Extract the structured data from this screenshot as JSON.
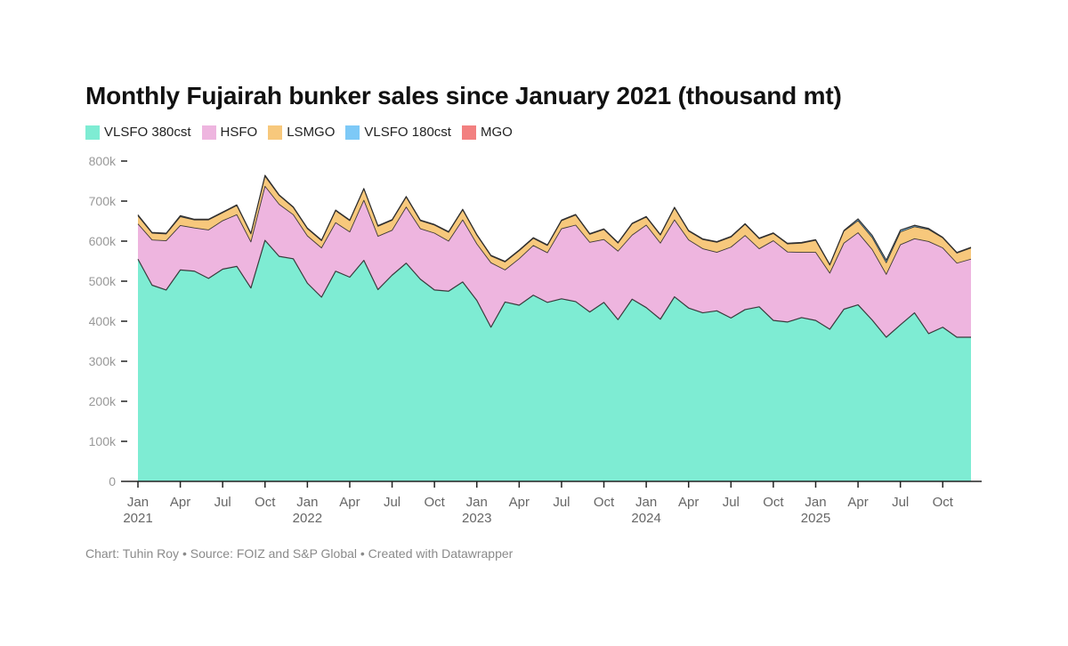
{
  "title": "Monthly Fujairah bunker sales since January 2021 (thousand mt)",
  "footer": "Chart: Tuhin Roy • Source: FOIZ and S&P Global • Created with Datawrapper",
  "colors": {
    "vlsfo380": "#7eecd3",
    "hsfo": "#eeb5df",
    "lsmgo": "#f7c87c",
    "vlsfo180": "#7dc9f7",
    "mgo": "#f28080",
    "outline": "#2a2a2a",
    "axis": "#222222",
    "tick_text": "#999999",
    "x_text": "#666666"
  },
  "chart_data": {
    "type": "area",
    "stacked": true,
    "title": "Monthly Fujairah bunker sales since January 2021 (thousand mt)",
    "ylim": [
      0,
      800000
    ],
    "y_ticks": [
      0,
      100000,
      200000,
      300000,
      400000,
      500000,
      600000,
      700000,
      800000
    ],
    "y_tick_labels": [
      "0",
      "100k",
      "200k",
      "300k",
      "400k",
      "500k",
      "600k",
      "700k",
      "800k"
    ],
    "x_ticks": [
      {
        "index": 0,
        "month": "Jan",
        "year": "2021"
      },
      {
        "index": 3,
        "month": "Apr",
        "year": ""
      },
      {
        "index": 6,
        "month": "Jul",
        "year": ""
      },
      {
        "index": 9,
        "month": "Oct",
        "year": ""
      },
      {
        "index": 12,
        "month": "Jan",
        "year": "2022"
      },
      {
        "index": 15,
        "month": "Apr",
        "year": ""
      },
      {
        "index": 18,
        "month": "Jul",
        "year": ""
      },
      {
        "index": 21,
        "month": "Oct",
        "year": ""
      },
      {
        "index": 24,
        "month": "Jan",
        "year": "2023"
      },
      {
        "index": 27,
        "month": "Apr",
        "year": ""
      },
      {
        "index": 30,
        "month": "Jul",
        "year": ""
      },
      {
        "index": 33,
        "month": "Oct",
        "year": ""
      },
      {
        "index": 36,
        "month": "Jan",
        "year": "2024"
      },
      {
        "index": 39,
        "month": "Apr",
        "year": ""
      },
      {
        "index": 42,
        "month": "Jul",
        "year": ""
      },
      {
        "index": 45,
        "month": "Oct",
        "year": ""
      },
      {
        "index": 48,
        "month": "Jan",
        "year": "2025"
      },
      {
        "index": 51,
        "month": "Apr",
        "year": ""
      },
      {
        "index": 54,
        "month": "Jul",
        "year": ""
      },
      {
        "index": 57,
        "month": "Oct",
        "year": ""
      }
    ],
    "period_start": "Jan 2021",
    "period_end": "Dec 2025",
    "series": [
      {
        "name": "VLSFO 380cst",
        "color": "#7eecd3",
        "values": [
          555,
          490,
          478,
          528,
          525,
          507,
          530,
          537,
          483,
          602,
          562,
          556,
          495,
          460,
          525,
          510,
          552,
          479,
          515,
          545,
          505,
          478,
          475,
          498,
          452,
          385,
          448,
          440,
          465,
          447,
          456,
          449,
          423,
          447,
          404,
          455,
          434,
          405,
          461,
          433,
          421,
          426,
          408,
          429,
          436,
          402,
          398,
          409,
          402,
          380,
          430,
          441,
          403,
          360,
          391,
          421,
          369,
          385,
          360,
          360
        ]
      },
      {
        "name": "HSFO",
        "color": "#eeb5df",
        "values": [
          88,
          113,
          123,
          111,
          108,
          121,
          121,
          129,
          115,
          135,
          130,
          110,
          118,
          123,
          121,
          113,
          150,
          133,
          112,
          140,
          126,
          142,
          125,
          155,
          141,
          161,
          80,
          116,
          124,
          124,
          175,
          191,
          174,
          157,
          171,
          160,
          206,
          190,
          192,
          170,
          160,
          146,
          177,
          185,
          145,
          199,
          175,
          163,
          170,
          140,
          165,
          180,
          176,
          157,
          200,
          185,
          230,
          198,
          185,
          195
        ]
      },
      {
        "name": "LSMGO",
        "color": "#f7c87c",
        "values": [
          20,
          17,
          17,
          22,
          20,
          25,
          20,
          23,
          20,
          25,
          22,
          18,
          18,
          18,
          30,
          28,
          28,
          25,
          25,
          25,
          20,
          20,
          22,
          25,
          22,
          17,
          20,
          20,
          18,
          18,
          20,
          25,
          20,
          25,
          20,
          28,
          20,
          20,
          30,
          22,
          23,
          25,
          25,
          28,
          25,
          18,
          20,
          23,
          30,
          20,
          30,
          30,
          30,
          29,
          32,
          30,
          30,
          25,
          25,
          28
        ]
      },
      {
        "name": "VLSFO 180cst",
        "color": "#7dc9f7",
        "values": [
          2,
          1,
          1,
          2,
          1,
          1,
          1,
          1,
          1,
          2,
          1,
          1,
          1,
          1,
          1,
          1,
          1,
          1,
          1,
          1,
          1,
          1,
          1,
          1,
          1,
          1,
          1,
          1,
          1,
          1,
          1,
          1,
          1,
          1,
          1,
          1,
          1,
          1,
          1,
          1,
          1,
          1,
          1,
          1,
          1,
          1,
          1,
          1,
          1,
          1,
          1,
          4,
          5,
          6,
          4,
          3,
          2,
          1,
          1,
          1
        ]
      },
      {
        "name": "MGO",
        "color": "#f28080",
        "values": [
          1,
          1,
          1,
          1,
          1,
          1,
          1,
          1,
          1,
          1,
          1,
          1,
          1,
          1,
          1,
          1,
          1,
          1,
          1,
          1,
          1,
          1,
          1,
          1,
          1,
          1,
          1,
          1,
          1,
          1,
          1,
          1,
          1,
          1,
          1,
          1,
          1,
          1,
          1,
          1,
          1,
          1,
          1,
          1,
          1,
          1,
          1,
          1,
          1,
          1,
          1,
          1,
          1,
          1,
          1,
          1,
          1,
          1,
          1,
          1
        ]
      }
    ],
    "units_note": "series values in thousand mt"
  }
}
